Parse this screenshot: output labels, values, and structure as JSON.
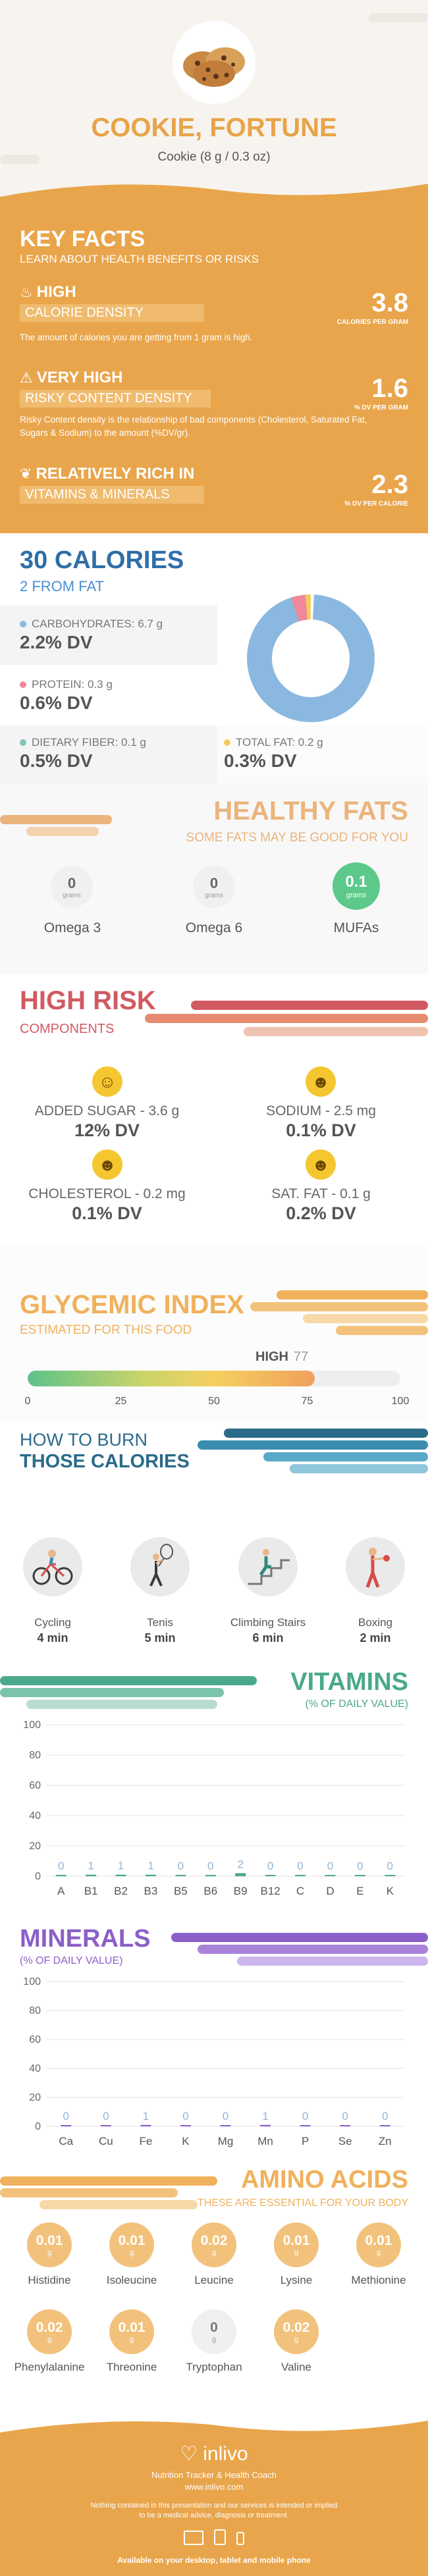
{
  "header": {
    "title": "COOKIE, FORTUNE",
    "subtitle": "Cookie (8 g / 0.3 oz)"
  },
  "keyfacts": {
    "title": "KEY FACTS",
    "subtitle": "LEARN ABOUT HEALTH BENEFITS OR RISKS",
    "items": [
      {
        "level": "HIGH",
        "label": "CALORIE DENSITY",
        "value": "3.8",
        "unit": "CALORIES PER GRAM",
        "desc": "The amount of calories you are getting from 1 gram is high."
      },
      {
        "level": "VERY HIGH",
        "label": "RISKY CONTENT DENSITY",
        "value": "1.6",
        "unit": "% DV PER GRAM",
        "desc": "Risky Content density is the relationship of bad components (Cholesterol, Saturated Fat, Sugars & Sodium) to the amount (%DV/gr)."
      },
      {
        "level": "RELATIVELY RICH IN",
        "label": "VITAMINS & MINERALS",
        "value": "2.3",
        "unit": "% DV PER CALORIE",
        "desc": ""
      }
    ]
  },
  "calories": {
    "title": "30 CALORIES",
    "subtitle": "2 FROM FAT",
    "macros": [
      {
        "label": "CARBOHYDRATES: 6.7 g",
        "dv": "2.2% DV",
        "color": "#8bb8e0"
      },
      {
        "label": "PROTEIN: 0.3 g",
        "dv": "0.6% DV",
        "color": "#f0879a"
      },
      {
        "label": "DIETARY FIBER: 0.1 g",
        "dv": "0.5% DV",
        "color": "#7fc4b8"
      },
      {
        "label": "TOTAL FAT: 0.2 g",
        "dv": "0.3% DV",
        "color": "#f5cc60"
      }
    ]
  },
  "fats": {
    "title": "HEALTHY FATS",
    "subtitle": "SOME FATS MAY BE GOOD FOR YOU",
    "unit": "grams",
    "items": [
      {
        "name": "Omega 3",
        "value": "0"
      },
      {
        "name": "Omega 6",
        "value": "0"
      },
      {
        "name": "MUFAs",
        "value": "0.1"
      }
    ]
  },
  "risk": {
    "title": "HIGH RISK",
    "subtitle": "COMPONENTS",
    "items": [
      {
        "label": "ADDED SUGAR - 3.6 g",
        "dv": "12% DV"
      },
      {
        "label": "SODIUM - 2.5 mg",
        "dv": "0.1% DV"
      },
      {
        "label": "CHOLESTEROL - 0.2 mg",
        "dv": "0.1% DV"
      },
      {
        "label": "SAT. FAT - 0.1 g",
        "dv": "0.2% DV"
      }
    ]
  },
  "glycemic": {
    "title": "GLYCEMIC INDEX",
    "subtitle": "ESTIMATED FOR THIS FOOD",
    "level": "HIGH",
    "value": "77",
    "ticks": [
      "0",
      "25",
      "50",
      "75",
      "100"
    ]
  },
  "burn": {
    "title1": "HOW TO BURN",
    "title2": "THOSE CALORIES",
    "items": [
      {
        "name": "Cycling",
        "time": "4 min",
        "icon": "cycling-icon"
      },
      {
        "name": "Tenis",
        "time": "5 min",
        "icon": "tennis-icon"
      },
      {
        "name": "Climbing Stairs",
        "time": "6 min",
        "icon": "stairs-icon"
      },
      {
        "name": "Boxing",
        "time": "2 min",
        "icon": "boxing-icon"
      }
    ]
  },
  "vitamins": {
    "title": "VITAMINS",
    "subtitle": "(% OF DAILY VALUE)",
    "yticks": [
      "100",
      "80",
      "60",
      "40",
      "20",
      "0"
    ],
    "cats": [
      "A",
      "B1",
      "B2",
      "B3",
      "B5",
      "B6",
      "B9",
      "B12",
      "C",
      "D",
      "E",
      "K"
    ],
    "values": [
      "0",
      "1",
      "1",
      "1",
      "0",
      "0",
      "2",
      "0",
      "0",
      "0",
      "0",
      "0"
    ]
  },
  "minerals": {
    "title": "MINERALS",
    "subtitle": "(% OF DAILY VALUE)",
    "yticks": [
      "100",
      "80",
      "60",
      "40",
      "20",
      "0"
    ],
    "cats": [
      "Ca",
      "Cu",
      "Fe",
      "K",
      "Mg",
      "Mn",
      "P",
      "Se",
      "Zn"
    ],
    "values": [
      "0",
      "0",
      "1",
      "0",
      "0",
      "1",
      "0",
      "0",
      "0"
    ]
  },
  "amino": {
    "title": "AMINO ACIDS",
    "subtitle": "THESE ARE ESSENTIAL FOR YOUR BODY",
    "unit": "g",
    "items": [
      {
        "name": "Histidine",
        "value": "0.01"
      },
      {
        "name": "Isoleucine",
        "value": "0.01"
      },
      {
        "name": "Leucine",
        "value": "0.02"
      },
      {
        "name": "Lysine",
        "value": "0.01"
      },
      {
        "name": "Methionine",
        "value": "0.01"
      },
      {
        "name": "Phenylalanine",
        "value": "0.02"
      },
      {
        "name": "Threonine",
        "value": "0.01"
      },
      {
        "name": "Tryptophan",
        "value": "0"
      },
      {
        "name": "Valine",
        "value": "0.02"
      }
    ]
  },
  "footer": {
    "brand": "inlivo",
    "tagline": "Nutrition Tracker & Health Coach",
    "url": "www.inlivo.com",
    "disclaimer1": "Nothing contained in this presentation and our services is intended or implied",
    "disclaimer2": "to be a medical advice, diagnosis or treatment.",
    "available": "Available on your desktop, tablet and mobile phone"
  }
}
